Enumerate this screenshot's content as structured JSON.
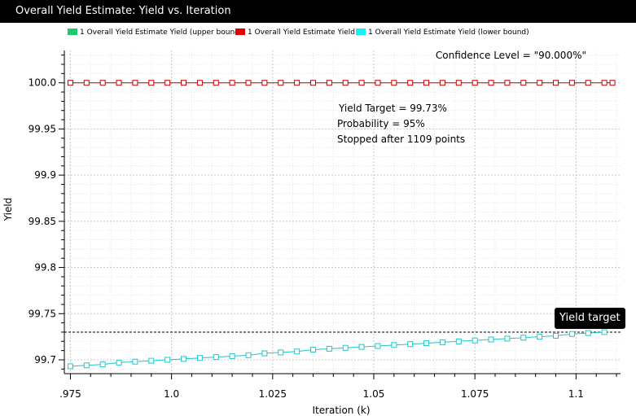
{
  "window": {
    "title": "Overall Yield Estimate: Yield vs. Iteration"
  },
  "legend": {
    "items": [
      {
        "label": "1 Overall Yield Estimate Yield (upper bound)",
        "color": "#1ec86e"
      },
      {
        "label": "1 Overall Yield Estimate Yield",
        "color": "#e00000"
      },
      {
        "label": "1 Overall Yield Estimate Yield (lower bound)",
        "color": "#19f0f0"
      }
    ]
  },
  "annotations": {
    "confidence": "Confidence Level = \"90.000%\"",
    "yield_target": "Yield Target = 99.73%",
    "probability": "Probability = 95%",
    "stopped": "Stopped after 1109 points",
    "marker_label": "Yield target"
  },
  "chart_data": {
    "type": "line",
    "xlabel": "Iteration (k)",
    "ylabel": "Yield",
    "xlim": [
      0.9735,
      1.111
    ],
    "ylim": [
      99.685,
      100.035
    ],
    "x_ticks": [
      0.975,
      1.0,
      1.025,
      1.05,
      1.075,
      1.1
    ],
    "x_tick_labels": [
      ".975",
      "1.0",
      "1.025",
      "1.05",
      "1.075",
      "1.1"
    ],
    "y_ticks": [
      99.7,
      99.75,
      99.8,
      99.85,
      99.9,
      99.95,
      100.0
    ],
    "y_tick_labels": [
      "99.7",
      "99.75",
      "99.8",
      "99.85",
      "99.9",
      "99.95",
      "100.0"
    ],
    "grid": true,
    "target_line": 99.73,
    "series": [
      {
        "name": "1 Overall Yield Estimate Yield",
        "color": "#c00000",
        "x": [
          0.975,
          0.979,
          0.983,
          0.987,
          0.991,
          0.995,
          0.999,
          1.003,
          1.007,
          1.011,
          1.015,
          1.019,
          1.023,
          1.027,
          1.031,
          1.035,
          1.039,
          1.043,
          1.047,
          1.051,
          1.055,
          1.059,
          1.063,
          1.067,
          1.071,
          1.075,
          1.079,
          1.083,
          1.087,
          1.091,
          1.095,
          1.099,
          1.103,
          1.107,
          1.109
        ],
        "y": [
          100.0,
          100.0,
          100.0,
          100.0,
          100.0,
          100.0,
          100.0,
          100.0,
          100.0,
          100.0,
          100.0,
          100.0,
          100.0,
          100.0,
          100.0,
          100.0,
          100.0,
          100.0,
          100.0,
          100.0,
          100.0,
          100.0,
          100.0,
          100.0,
          100.0,
          100.0,
          100.0,
          100.0,
          100.0,
          100.0,
          100.0,
          100.0,
          100.0,
          100.0,
          100.0
        ]
      },
      {
        "name": "1 Overall Yield Estimate Yield (lower bound)",
        "color": "#20c8c8",
        "x": [
          0.975,
          0.979,
          0.983,
          0.987,
          0.991,
          0.995,
          0.999,
          1.003,
          1.007,
          1.011,
          1.015,
          1.019,
          1.023,
          1.027,
          1.031,
          1.035,
          1.039,
          1.043,
          1.047,
          1.051,
          1.055,
          1.059,
          1.063,
          1.067,
          1.071,
          1.075,
          1.079,
          1.083,
          1.087,
          1.091,
          1.095,
          1.099,
          1.103,
          1.107
        ],
        "y": [
          99.693,
          99.694,
          99.695,
          99.697,
          99.698,
          99.699,
          99.7,
          99.701,
          99.702,
          99.703,
          99.704,
          99.705,
          99.707,
          99.708,
          99.709,
          99.711,
          99.712,
          99.713,
          99.714,
          99.715,
          99.716,
          99.717,
          99.718,
          99.719,
          99.72,
          99.721,
          99.722,
          99.723,
          99.724,
          99.725,
          99.726,
          99.728,
          99.729,
          99.73
        ]
      }
    ]
  }
}
